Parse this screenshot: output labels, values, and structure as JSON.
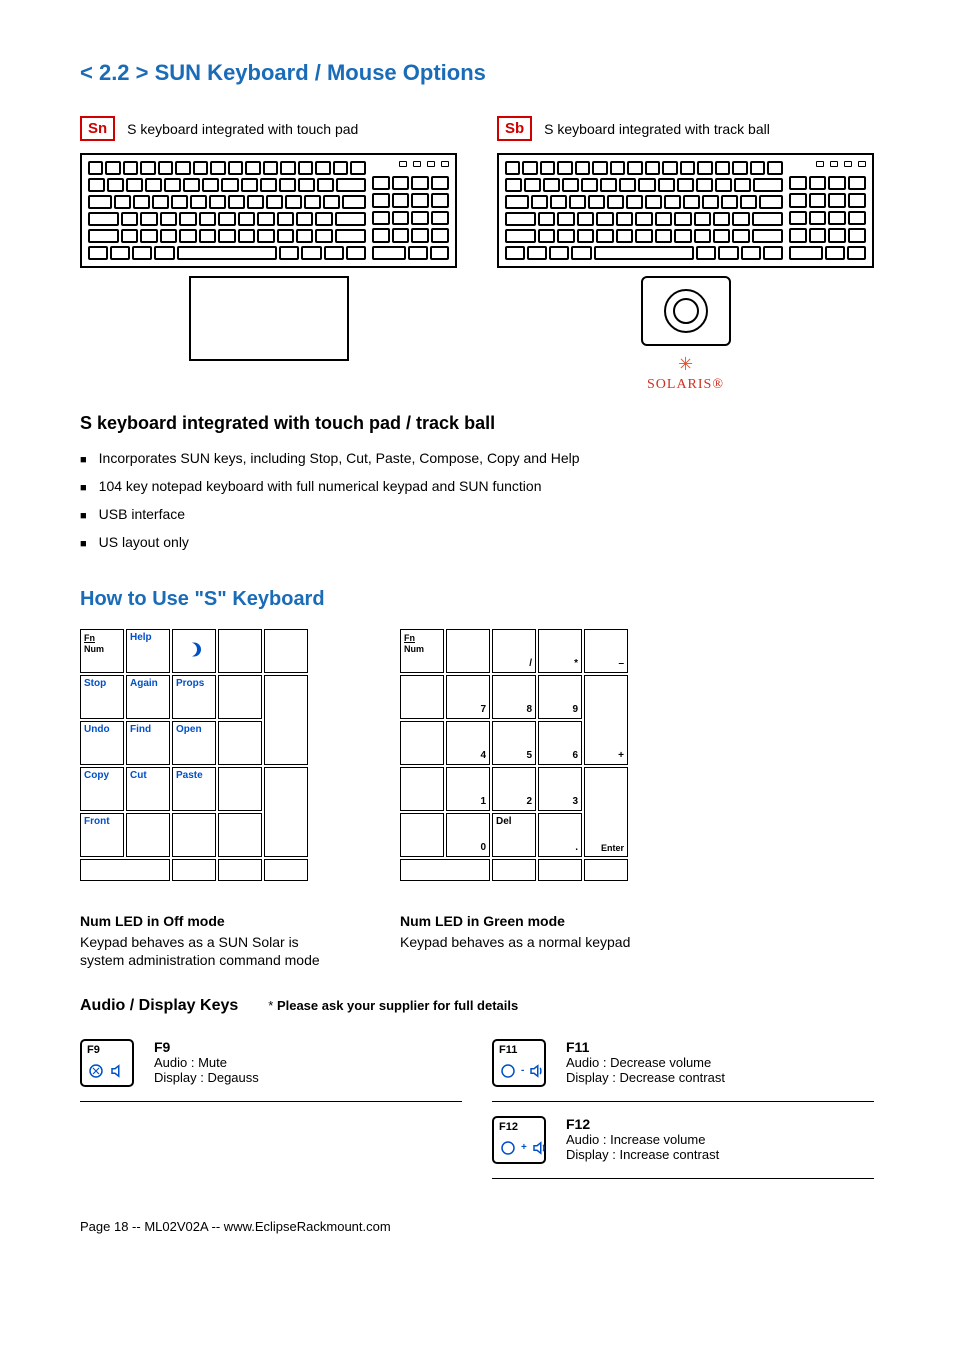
{
  "title_main": "< 2.2 > SUN Keyboard  /  Mouse Options",
  "variants": {
    "sn": {
      "code": "Sn",
      "desc": "S keyboard integrated with touch pad"
    },
    "sb": {
      "code": "Sb",
      "desc": "S keyboard integrated with track ball"
    }
  },
  "solaris": {
    "brand": "SOLARIS",
    "reg": "®"
  },
  "section_heading": "S keyboard integrated with touch pad  /  track ball",
  "bullets": [
    "Incorporates SUN keys, including Stop, Cut, Paste, Compose, Copy and Help",
    "104 key notepad keyboard with full numerical keypad and SUN function",
    "USB interface",
    "US layout only"
  ],
  "howto_title": "How to Use \"S\" Keyboard",
  "keypad_off": {
    "fn": "Fn",
    "num": "Num",
    "keys": [
      "Help",
      "Stop",
      "Again",
      "Props",
      "Undo",
      "Find",
      "Open",
      "Copy",
      "Cut",
      "Paste",
      "Front"
    ],
    "caption": "Num LED in Off mode",
    "desc": "Keypad   behaves as a SUN Solar       is  system  administration command mode"
  },
  "keypad_on": {
    "fn": "Fn",
    "num": "Num",
    "keys": {
      "slash": "/",
      "star": "*",
      "minus": "–",
      "7": "7",
      "8": "8",
      "9": "9",
      "4": "4",
      "5": "5",
      "6": "6",
      "plus": "+",
      "1": "1",
      "2": "2",
      "3": "3",
      "enter": "Enter",
      "0": "0",
      "del": "Del",
      "dot": "."
    },
    "caption": "Num LED in Green mode",
    "desc": "Keypad behaves as a normal keypad"
  },
  "audio": {
    "heading": "Audio / Display Keys",
    "note_star": "* ",
    "note": "Please ask your supplier for full details",
    "items": [
      {
        "label": "F9",
        "title": "F9",
        "audio": "Audio : Mute",
        "display": "Display : Degauss",
        "icon_color": "#0050c8",
        "sign": "x"
      },
      {
        "label": "F11",
        "title": "F11",
        "audio": "Audio : Decrease volume",
        "display": "Display : Decrease contrast",
        "icon_color": "#0050c8",
        "sign": "-"
      },
      {
        "label": "F12",
        "title": "F12",
        "audio": "Audio : Increase volume",
        "display": "Display : Increase contrast",
        "icon_color": "#0050c8",
        "sign": "+"
      }
    ]
  },
  "footer": "Page 18 -- ML02V02A -- www.EclipseRackmount.com",
  "colors": {
    "link_blue": "#1a6bb8",
    "accent_red": "#d00000",
    "key_blue": "#0050c8"
  }
}
